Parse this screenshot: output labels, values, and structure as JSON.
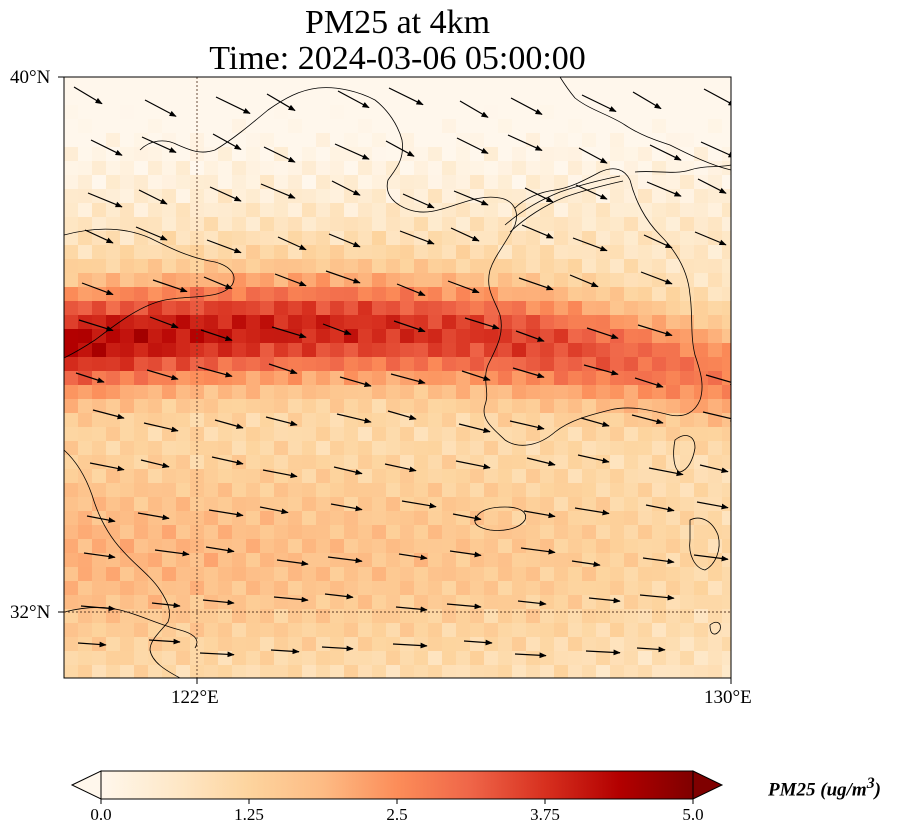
{
  "title": {
    "line1": "PM25 at 4km",
    "line2": "Time: 2024-03-06 05:00:00"
  },
  "axes": {
    "lat_labels": [
      "40°N",
      "32°N"
    ],
    "lon_labels": [
      "122°E",
      "130°E"
    ],
    "lon_range": [
      120,
      130
    ],
    "lat_range": [
      31,
      40
    ],
    "gridlines": "dotted at 122°E and 32°N"
  },
  "colorbar": {
    "label": "PM25 (ug/m",
    "label_sup": "3",
    "label_end": ")",
    "ticks": [
      "0.0",
      "1.25",
      "2.5",
      "3.75",
      "5.0"
    ],
    "range": [
      0,
      5
    ],
    "colormap": "OrRd",
    "extend": "both",
    "colors": [
      "#fff7ec",
      "#fee8c8",
      "#fdd49e",
      "#fdbb84",
      "#fc8d59",
      "#ef6548",
      "#d7301f",
      "#b30000",
      "#7f0000"
    ]
  },
  "map": {
    "field": "PM25",
    "level": "4km",
    "wind_vectors": "black arrows pointing east-southeast"
  }
}
